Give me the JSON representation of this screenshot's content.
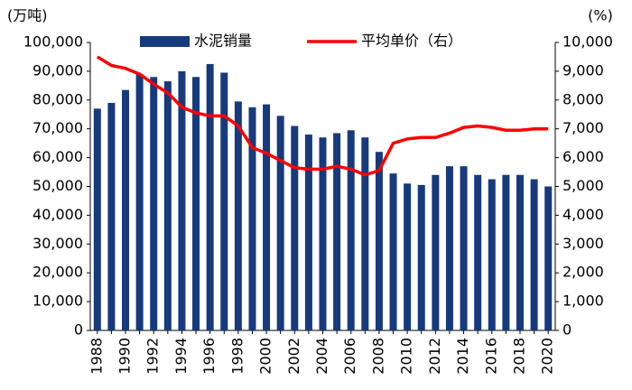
{
  "chart_data": {
    "type": "bar",
    "y_label": "(万吨)",
    "y2_label": "(%)",
    "categories": [
      "1988",
      null,
      "1990",
      null,
      "1992",
      null,
      "1994",
      null,
      "1996",
      null,
      "1998",
      null,
      "2000",
      null,
      "2002",
      null,
      "2004",
      null,
      "2006",
      null,
      "2008",
      null,
      "2010",
      null,
      "2012",
      null,
      "2014",
      null,
      "2016",
      null,
      "2018",
      null,
      "2020"
    ],
    "series": [
      {
        "name": "水泥销量",
        "type": "bar",
        "color": "#163a7c",
        "values": [
          77000,
          79000,
          83500,
          89000,
          88000,
          86500,
          90000,
          88000,
          92500,
          89500,
          79500,
          77500,
          78500,
          74500,
          71000,
          68000,
          67000,
          68500,
          69500,
          67000,
          62000,
          54500,
          51000,
          50500,
          54000,
          57000,
          57000,
          54000,
          52500,
          54000,
          54000,
          52500,
          50000
        ]
      },
      {
        "name": "平均单价（右）",
        "type": "line",
        "axis": "y2",
        "color": "#ff0000",
        "values": [
          9500,
          9200,
          9100,
          8900,
          8550,
          8250,
          7750,
          7550,
          7450,
          7450,
          7100,
          6350,
          6150,
          5900,
          5650,
          5600,
          5600,
          5700,
          5600,
          5400,
          5550,
          6500,
          6650,
          6700,
          6700,
          6850,
          7050,
          7100,
          7050,
          6950,
          6950,
          7000,
          7000
        ]
      }
    ],
    "ylim": [
      0,
      100000
    ],
    "yticks": [
      0,
      {
        "value": 10000,
        "label": "10,000"
      },
      {
        "value": 20000,
        "label": "20,000"
      },
      {
        "value": 30000,
        "label": "30,000"
      },
      {
        "value": 40000,
        "label": "40,000"
      },
      {
        "value": 50000,
        "label": "50,000"
      },
      {
        "value": 60000,
        "label": "60,000"
      },
      {
        "value": 70000,
        "label": "70,000"
      },
      {
        "value": 80000,
        "label": "80,000"
      },
      {
        "value": 90000,
        "label": "90,000"
      },
      {
        "value": 100000,
        "label": "100,000"
      }
    ],
    "y2lim": [
      0,
      10000
    ],
    "y2ticks": [
      0,
      {
        "value": 1000,
        "label": "1,000"
      },
      {
        "value": 2000,
        "label": "2,000"
      },
      {
        "value": 3000,
        "label": "3,000"
      },
      {
        "value": 4000,
        "label": "4,000"
      },
      {
        "value": 5000,
        "label": "5,000"
      },
      {
        "value": 6000,
        "label": "6,000"
      },
      {
        "value": 7000,
        "label": "7,000"
      },
      {
        "value": 8000,
        "label": "8,000"
      },
      {
        "value": 9000,
        "label": "9,000"
      },
      {
        "value": 10000,
        "label": "10,000"
      }
    ],
    "grid": false,
    "legend": "top"
  }
}
